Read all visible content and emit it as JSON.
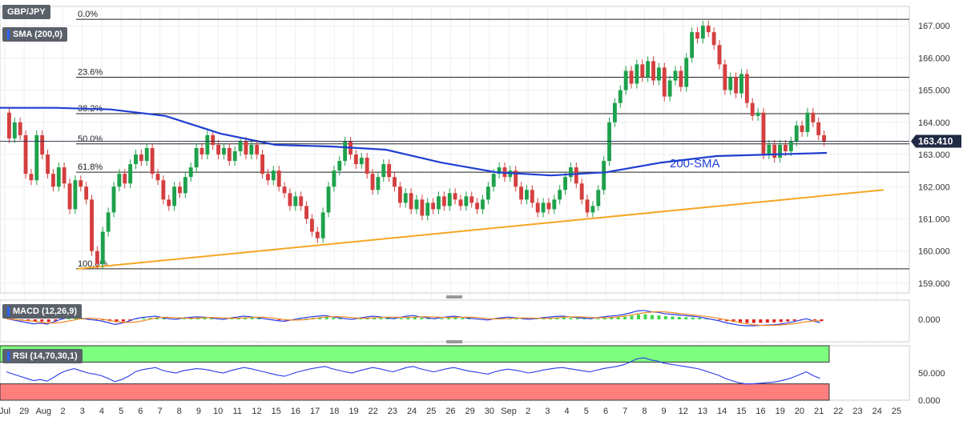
{
  "title": "GBP/JPY",
  "indicator_tags": {
    "sma": "SMA (200,0)",
    "macd": "MACD (12,26,9)",
    "rsi": "RSI (14,70,30,1)"
  },
  "sma_label": "200-SMA",
  "colors": {
    "bull": "#1ea14b",
    "bear": "#d43f3f",
    "sma": "#1f3fd1",
    "trend": "#f5a623",
    "fib": "#222222",
    "macd": "#2a3be8",
    "signal": "#f08a24",
    "rsi": "#2a3be8",
    "rsi_upper": "#7fff7f",
    "rsi_lower": "#ff7f7f",
    "price_tag": "#1f2a44"
  },
  "chart_data": {
    "type": "candlestick",
    "instrument": "GBP/JPY",
    "last_price": "163.410",
    "price_axis": [
      "167.000",
      "166.000",
      "165.000",
      "164.000",
      "163.000",
      "162.000",
      "161.000",
      "160.000",
      "159.000"
    ],
    "ylim": [
      158.7,
      167.6
    ],
    "x_ticks": [
      "Jul",
      "29",
      "Aug",
      "2",
      "3",
      "4",
      "5",
      "6",
      "7",
      "8",
      "9",
      "10",
      "11",
      "12",
      "15",
      "16",
      "17",
      "18",
      "19",
      "22",
      "23",
      "24",
      "25",
      "26",
      "29",
      "30",
      "Sep",
      "2",
      "3",
      "4",
      "5",
      "6",
      "7",
      "8",
      "9",
      "12",
      "13",
      "14",
      "15",
      "16",
      "19",
      "20",
      "21",
      "22",
      "23",
      "24",
      "25"
    ],
    "fibonacci": [
      {
        "label": "0.0%",
        "value": 167.2
      },
      {
        "label": "23.6%",
        "value": 165.4
      },
      {
        "label": "38.2%",
        "value": 164.27
      },
      {
        "label": "50.0%",
        "value": 163.33
      },
      {
        "label": "61.8%",
        "value": 162.45
      },
      {
        "label": "100.0%",
        "value": 159.45
      }
    ],
    "trendline": {
      "from": {
        "x": "2 Aug",
        "y": 159.45
      },
      "to": {
        "x": "23 Sep",
        "y": 161.9
      }
    },
    "sma_200": [
      {
        "x": "Jul",
        "y": 164.45
      },
      {
        "x": "29",
        "y": 164.45
      },
      {
        "x": "2",
        "y": 164.4
      },
      {
        "x": "5",
        "y": 164.2
      },
      {
        "x": "10",
        "y": 163.65
      },
      {
        "x": "15",
        "y": 163.3
      },
      {
        "x": "17",
        "y": 163.25
      },
      {
        "x": "22",
        "y": 163.15
      },
      {
        "x": "30",
        "y": 162.75
      },
      {
        "x": "4",
        "y": 162.45
      },
      {
        "x": "5",
        "y": 162.35
      },
      {
        "x": "9",
        "y": 162.45
      },
      {
        "x": "14",
        "y": 162.75
      },
      {
        "x": "16",
        "y": 162.95
      },
      {
        "x": "19",
        "y": 163.0
      },
      {
        "x": "20",
        "y": 163.05
      }
    ],
    "candles": [
      [
        164.3,
        163.5
      ],
      [
        163.5,
        164.0
      ],
      [
        164.0,
        163.6
      ],
      [
        163.6,
        162.4
      ],
      [
        162.4,
        162.2
      ],
      [
        162.2,
        163.6
      ],
      [
        163.6,
        163.0
      ],
      [
        163.0,
        162.4
      ],
      [
        162.4,
        162.0
      ],
      [
        162.0,
        162.6
      ],
      [
        162.6,
        162.1
      ],
      [
        162.1,
        161.3
      ],
      [
        161.3,
        162.2
      ],
      [
        162.2,
        162.0
      ],
      [
        162.0,
        161.6
      ],
      [
        161.6,
        160.0
      ],
      [
        160.0,
        159.6
      ],
      [
        159.6,
        160.6
      ],
      [
        160.6,
        161.2
      ],
      [
        161.2,
        162.0
      ],
      [
        162.0,
        162.4
      ],
      [
        162.4,
        162.1
      ],
      [
        162.1,
        162.7
      ],
      [
        162.7,
        163.0
      ],
      [
        163.0,
        162.8
      ],
      [
        162.8,
        163.2
      ],
      [
        163.2,
        162.4
      ],
      [
        162.4,
        162.2
      ],
      [
        162.2,
        161.6
      ],
      [
        161.6,
        161.4
      ],
      [
        161.4,
        162.0
      ],
      [
        162.0,
        161.8
      ],
      [
        161.8,
        162.3
      ],
      [
        162.3,
        162.6
      ],
      [
        162.6,
        163.2
      ],
      [
        163.2,
        163.0
      ],
      [
        163.0,
        163.6
      ],
      [
        163.6,
        163.3
      ],
      [
        163.3,
        163.0
      ],
      [
        163.0,
        163.2
      ],
      [
        163.2,
        162.8
      ],
      [
        162.8,
        163.1
      ],
      [
        163.1,
        163.4
      ],
      [
        163.4,
        163.0
      ],
      [
        163.0,
        163.3
      ],
      [
        163.3,
        163.0
      ],
      [
        163.0,
        162.4
      ],
      [
        162.4,
        162.2
      ],
      [
        162.2,
        162.5
      ],
      [
        162.5,
        162.0
      ],
      [
        162.0,
        161.8
      ],
      [
        161.8,
        161.4
      ],
      [
        161.4,
        161.7
      ],
      [
        161.7,
        161.4
      ],
      [
        161.4,
        161.0
      ],
      [
        161.0,
        160.6
      ],
      [
        160.6,
        160.4
      ],
      [
        160.4,
        161.2
      ],
      [
        161.2,
        162.0
      ],
      [
        162.0,
        162.5
      ],
      [
        162.5,
        162.8
      ],
      [
        162.8,
        163.4
      ],
      [
        163.4,
        163.0
      ],
      [
        163.0,
        162.7
      ],
      [
        162.7,
        162.9
      ],
      [
        162.9,
        162.4
      ],
      [
        162.4,
        161.9
      ],
      [
        161.9,
        162.3
      ],
      [
        162.3,
        162.7
      ],
      [
        162.7,
        162.3
      ],
      [
        162.3,
        162.0
      ],
      [
        162.0,
        161.5
      ],
      [
        161.5,
        161.8
      ],
      [
        161.8,
        161.3
      ],
      [
        161.3,
        161.6
      ],
      [
        161.6,
        161.1
      ],
      [
        161.1,
        161.5
      ],
      [
        161.5,
        161.3
      ],
      [
        161.3,
        161.7
      ],
      [
        161.7,
        161.4
      ],
      [
        161.4,
        161.8
      ],
      [
        161.8,
        161.6
      ],
      [
        161.6,
        161.4
      ],
      [
        161.4,
        161.7
      ],
      [
        161.7,
        161.5
      ],
      [
        161.5,
        161.3
      ],
      [
        161.3,
        161.6
      ],
      [
        161.6,
        162.0
      ],
      [
        162.0,
        162.4
      ],
      [
        162.4,
        162.6
      ],
      [
        162.6,
        162.3
      ],
      [
        162.3,
        162.5
      ],
      [
        162.5,
        162.0
      ],
      [
        162.0,
        161.6
      ],
      [
        161.6,
        161.9
      ],
      [
        161.9,
        161.5
      ],
      [
        161.5,
        161.2
      ],
      [
        161.2,
        161.5
      ],
      [
        161.5,
        161.3
      ],
      [
        161.3,
        161.6
      ],
      [
        161.6,
        161.9
      ],
      [
        161.9,
        162.3
      ],
      [
        162.3,
        162.6
      ],
      [
        162.6,
        162.1
      ],
      [
        162.1,
        161.6
      ],
      [
        161.6,
        161.2
      ],
      [
        161.2,
        161.4
      ],
      [
        161.4,
        161.9
      ],
      [
        161.9,
        162.8
      ],
      [
        162.8,
        164.0
      ],
      [
        164.0,
        164.6
      ],
      [
        164.6,
        165.0
      ],
      [
        165.0,
        165.6
      ],
      [
        165.6,
        165.2
      ],
      [
        165.2,
        165.8
      ],
      [
        165.8,
        165.4
      ],
      [
        165.4,
        165.9
      ],
      [
        165.9,
        165.3
      ],
      [
        165.3,
        165.7
      ],
      [
        165.7,
        164.8
      ],
      [
        164.8,
        165.3
      ],
      [
        165.3,
        165.6
      ],
      [
        165.6,
        165.1
      ],
      [
        165.1,
        166.0
      ],
      [
        166.0,
        166.8
      ],
      [
        166.8,
        166.6
      ],
      [
        166.6,
        167.0
      ],
      [
        167.0,
        166.8
      ],
      [
        166.8,
        166.4
      ],
      [
        166.4,
        165.8
      ],
      [
        165.8,
        165.0
      ],
      [
        165.0,
        165.4
      ],
      [
        165.4,
        164.9
      ],
      [
        164.9,
        165.5
      ],
      [
        165.5,
        164.6
      ],
      [
        164.6,
        164.2
      ],
      [
        164.2,
        164.3
      ],
      [
        164.3,
        163.0
      ],
      [
        163.0,
        163.3
      ],
      [
        163.3,
        162.9
      ],
      [
        162.9,
        163.3
      ],
      [
        163.3,
        163.1
      ],
      [
        163.1,
        163.4
      ],
      [
        163.4,
        163.9
      ],
      [
        163.9,
        163.7
      ],
      [
        163.7,
        164.3
      ],
      [
        164.3,
        164.0
      ],
      [
        164.0,
        163.6
      ],
      [
        163.6,
        163.41
      ]
    ],
    "macd": [
      {
        "label": "MACD (12,26,9)",
        "axis": [
          "0.000"
        ]
      }
    ],
    "rsi": {
      "label": "RSI (14,70,30,1)",
      "axis": [
        "50.000",
        "0.000"
      ],
      "overbought": 70,
      "oversold": 30,
      "values": [
        52,
        48,
        44,
        40,
        36,
        38,
        35,
        42,
        50,
        55,
        58,
        54,
        50,
        48,
        45,
        40,
        34,
        38,
        44,
        52,
        56,
        58,
        60,
        55,
        52,
        50,
        54,
        56,
        58,
        57,
        55,
        52,
        50,
        54,
        57,
        60,
        58,
        55,
        52,
        49,
        46,
        44,
        48,
        52,
        55,
        58,
        60,
        62,
        58,
        55,
        52,
        50,
        54,
        57,
        60,
        58,
        55,
        52,
        56,
        60,
        62,
        58,
        55,
        52,
        55,
        58,
        60,
        57,
        54,
        52,
        50,
        48,
        52,
        55,
        57,
        55,
        53,
        50,
        52,
        55,
        57,
        59,
        60,
        58,
        56,
        54,
        52,
        55,
        58,
        60,
        62,
        65,
        70,
        76,
        78,
        74,
        72,
        68,
        66,
        64,
        62,
        60,
        58,
        54,
        50,
        46,
        40,
        36,
        32,
        30,
        30,
        31,
        32,
        33,
        35,
        38,
        42,
        47,
        52,
        45,
        40
      ]
    }
  }
}
